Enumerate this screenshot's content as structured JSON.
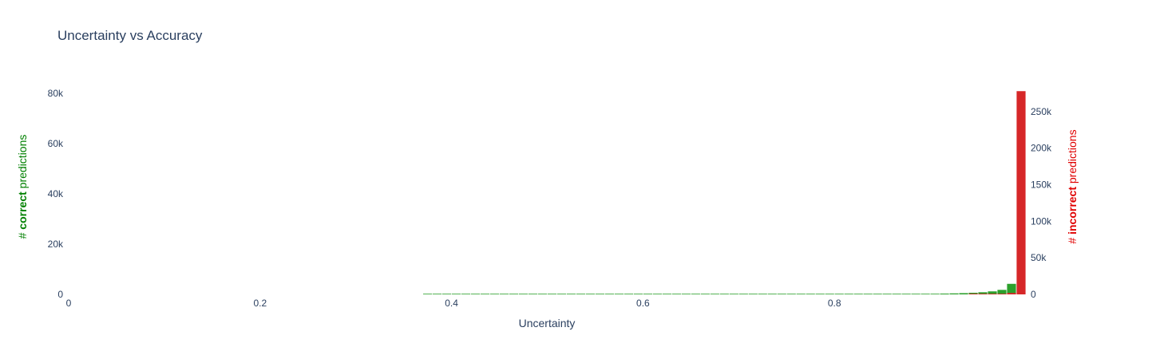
{
  "chart_data": {
    "type": "bar",
    "title": "Uncertainty vs Accuracy",
    "xlabel": "Uncertainty",
    "ylabel_left": {
      "prefix": "# ",
      "bold": "correct",
      "suffix": " predictions",
      "color": "#008000"
    },
    "ylabel_right": {
      "prefix": "# ",
      "bold": "incorrect",
      "suffix": " predictions",
      "color": "#e00000"
    },
    "xlim": [
      0,
      1
    ],
    "ylim_left": [
      0,
      80000
    ],
    "ylim_right": [
      0,
      275000
    ],
    "x_ticks": [
      {
        "value": 0,
        "label": "0"
      },
      {
        "value": 0.2,
        "label": "0.2"
      },
      {
        "value": 0.4,
        "label": "0.4"
      },
      {
        "value": 0.6,
        "label": "0.6"
      },
      {
        "value": 0.8,
        "label": "0.8"
      }
    ],
    "y_left_ticks": [
      {
        "value": 0,
        "label": "0"
      },
      {
        "value": 20000,
        "label": "20k"
      },
      {
        "value": 40000,
        "label": "40k"
      },
      {
        "value": 60000,
        "label": "60k"
      },
      {
        "value": 80000,
        "label": "80k"
      }
    ],
    "y_right_ticks": [
      {
        "value": 0,
        "label": "0"
      },
      {
        "value": 50000,
        "label": "50k"
      },
      {
        "value": 100000,
        "label": "100k"
      },
      {
        "value": 150000,
        "label": "150k"
      },
      {
        "value": 200000,
        "label": "200k"
      },
      {
        "value": 250000,
        "label": "250k"
      }
    ],
    "bin_width": 0.01,
    "series": [
      {
        "name": "correct",
        "axis": "left",
        "color": "#2ca02c",
        "x": [
          0.375,
          0.385,
          0.395,
          0.405,
          0.415,
          0.425,
          0.435,
          0.445,
          0.455,
          0.465,
          0.475,
          0.485,
          0.495,
          0.505,
          0.515,
          0.525,
          0.535,
          0.545,
          0.555,
          0.565,
          0.575,
          0.585,
          0.595,
          0.605,
          0.615,
          0.625,
          0.635,
          0.645,
          0.655,
          0.665,
          0.675,
          0.685,
          0.695,
          0.705,
          0.715,
          0.725,
          0.735,
          0.745,
          0.755,
          0.765,
          0.775,
          0.785,
          0.795,
          0.805,
          0.815,
          0.825,
          0.835,
          0.845,
          0.855,
          0.865,
          0.875,
          0.885,
          0.895,
          0.905,
          0.915,
          0.925,
          0.935,
          0.945,
          0.955,
          0.965,
          0.975,
          0.985
        ],
        "values": [
          60,
          120,
          80,
          70,
          60,
          50,
          50,
          40,
          40,
          40,
          40,
          40,
          40,
          40,
          40,
          40,
          40,
          40,
          40,
          40,
          40,
          40,
          40,
          40,
          40,
          40,
          40,
          40,
          40,
          40,
          40,
          40,
          40,
          40,
          40,
          40,
          40,
          50,
          50,
          50,
          60,
          60,
          70,
          70,
          80,
          80,
          90,
          100,
          120,
          140,
          160,
          190,
          220,
          260,
          320,
          400,
          500,
          650,
          850,
          1200,
          1800,
          4200
        ]
      },
      {
        "name": "incorrect",
        "axis": "right",
        "color": "#d62728",
        "x": [
          0.945,
          0.955,
          0.965,
          0.975,
          0.985,
          0.995
        ],
        "values": [
          200,
          300,
          500,
          800,
          2000,
          278000
        ]
      }
    ]
  }
}
